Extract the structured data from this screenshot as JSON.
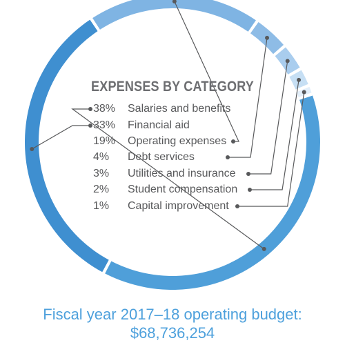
{
  "chart_data": {
    "type": "pie",
    "title": "EXPENSES BY CATEGORY",
    "categories": [
      "Salaries and benefits",
      "Financial aid",
      "Operating expenses",
      "Debt services",
      "Utilities and insurance",
      "Student compensation",
      "Capital improvement"
    ],
    "values": [
      38,
      33,
      19,
      4,
      3,
      2,
      1
    ],
    "value_labels": [
      "38%",
      "33%",
      "19%",
      "4%",
      "3%",
      "2%",
      "1%"
    ],
    "colors": [
      "#4f9fd9",
      "#3f8fd0",
      "#7fb4e3",
      "#8ebce6",
      "#a9cdee",
      "#c6dff4",
      "#e3effa"
    ],
    "legend": "center"
  },
  "footer": {
    "line1": "Fiscal year 2017–18 operating budget:",
    "line2": "$68,736,254"
  }
}
